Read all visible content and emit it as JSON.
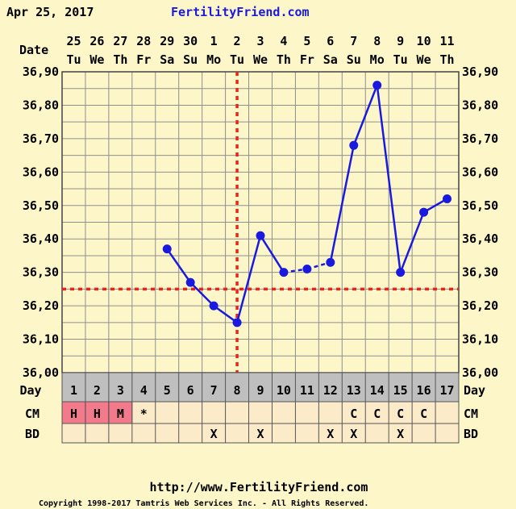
{
  "header": {
    "date": "Apr 25, 2017",
    "site": "FertilityFriend.com"
  },
  "footer": {
    "url": "http://www.FertilityFriend.com",
    "copyright": "Copyright 1998-2017 Tamtris Web Services Inc. - All Rights Reserved."
  },
  "rows": {
    "date_label": "Date",
    "day_label": "Day",
    "cm_label": "CM",
    "bd_label": "BD"
  },
  "chart_data": {
    "type": "line",
    "dates": [
      "25",
      "26",
      "27",
      "28",
      "29",
      "30",
      "1",
      "2",
      "3",
      "4",
      "5",
      "6",
      "7",
      "8",
      "9",
      "10",
      "11"
    ],
    "weekdays": [
      "Tu",
      "We",
      "Th",
      "Fr",
      "Sa",
      "Su",
      "Mo",
      "Tu",
      "We",
      "Th",
      "Fr",
      "Sa",
      "Su",
      "Mo",
      "Tu",
      "We",
      "Th"
    ],
    "cycle_days": [
      "1",
      "2",
      "3",
      "4",
      "5",
      "6",
      "7",
      "8",
      "9",
      "10",
      "11",
      "12",
      "13",
      "14",
      "15",
      "16",
      "17"
    ],
    "y_ticks": [
      "36,00",
      "36,10",
      "36,20",
      "36,30",
      "36,40",
      "36,50",
      "36,60",
      "36,70",
      "36,80",
      "36,90"
    ],
    "ylim": [
      36.0,
      36.9
    ],
    "temperatures": [
      null,
      null,
      null,
      null,
      36.37,
      36.27,
      36.2,
      36.15,
      36.41,
      36.3,
      36.31,
      36.33,
      36.68,
      36.86,
      36.3,
      36.48,
      36.52
    ],
    "dashed_segments": [
      [
        9,
        10
      ],
      [
        10,
        11
      ]
    ],
    "coverline": 36.25,
    "ovulation_day_index": 7,
    "cm": [
      "H",
      "H",
      "M",
      "*",
      "",
      "",
      "",
      "",
      "",
      "",
      "",
      "",
      "C",
      "C",
      "C",
      "C",
      ""
    ],
    "cm_highlight": [
      true,
      true,
      true,
      false,
      false,
      false,
      false,
      false,
      false,
      false,
      false,
      false,
      false,
      false,
      false,
      false,
      false
    ],
    "bd": [
      "",
      "",
      "",
      "",
      "",
      "",
      "X",
      "",
      "X",
      "",
      "",
      "X",
      "X",
      "",
      "X",
      "",
      ""
    ],
    "colors": {
      "line": "#1a1adf",
      "coverline": "#e8241c",
      "menses": "#f37a8a",
      "grid": "#8f8f8f",
      "plot_bg": "#fdf6c8",
      "row_bg": "#fbebc9",
      "day_bg": "#bfbfbf"
    }
  }
}
